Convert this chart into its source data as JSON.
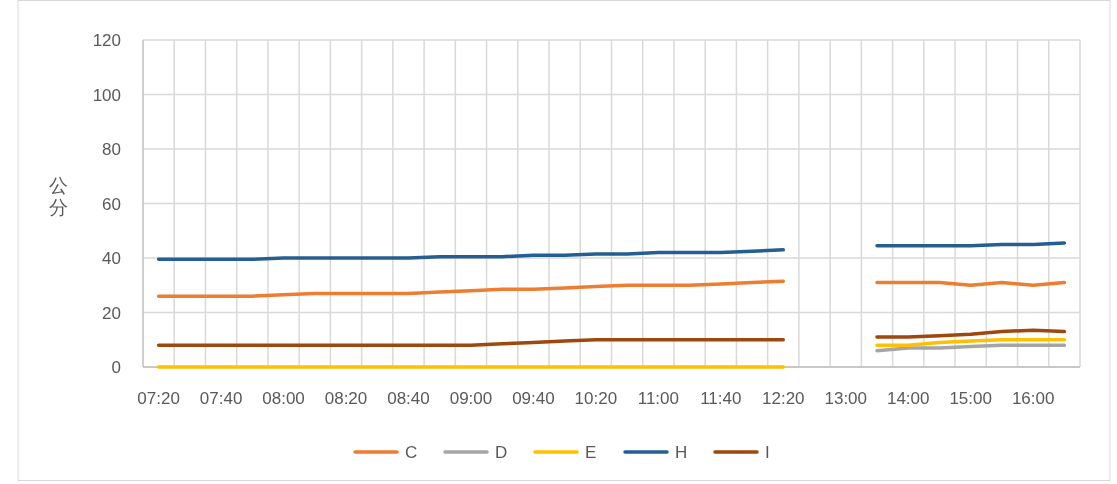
{
  "chart_data": {
    "type": "line",
    "ylabel": "公分",
    "categories": [
      "07:20",
      null,
      "07:40",
      null,
      "08:00",
      null,
      "08:20",
      null,
      "08:40",
      null,
      "09:00",
      null,
      "09:40",
      null,
      "10:20",
      null,
      "11:00",
      null,
      "11:40",
      null,
      "12:20",
      null,
      "13:00",
      null,
      "14:00",
      null,
      "15:00",
      null,
      "16:00",
      null
    ],
    "ylim": [
      0,
      120
    ],
    "yticks": [
      0,
      20,
      40,
      60,
      80,
      100,
      120
    ],
    "grid": true,
    "legend": "bottom",
    "series": [
      {
        "name": "C",
        "color": "#ed7d31",
        "values": [
          26,
          26,
          26,
          26,
          26.5,
          27,
          27,
          27,
          27,
          27.5,
          28,
          28.5,
          28.5,
          29,
          29.5,
          30,
          30,
          30,
          30.5,
          31,
          31.5,
          null,
          null,
          31,
          31,
          31,
          30,
          31,
          30,
          31
        ]
      },
      {
        "name": "D",
        "color": "#a5a5a5",
        "values": [
          null,
          null,
          null,
          null,
          null,
          null,
          null,
          null,
          null,
          null,
          null,
          null,
          null,
          null,
          null,
          null,
          null,
          null,
          null,
          null,
          null,
          null,
          null,
          6,
          7,
          7,
          7.5,
          8,
          8,
          8
        ]
      },
      {
        "name": "E",
        "color": "#ffc000",
        "values": [
          0,
          0,
          0,
          0,
          0,
          0,
          0,
          0,
          0,
          0,
          0,
          0,
          0,
          0,
          0,
          0,
          0,
          0,
          0,
          0,
          0,
          null,
          null,
          8,
          8,
          9,
          9.5,
          10,
          10,
          10
        ]
      },
      {
        "name": "H",
        "color": "#255e91",
        "values": [
          39.5,
          39.5,
          39.5,
          39.5,
          40,
          40,
          40,
          40,
          40,
          40.5,
          40.5,
          40.5,
          41,
          41,
          41.5,
          41.5,
          42,
          42,
          42,
          42.5,
          43,
          null,
          null,
          44.5,
          44.5,
          44.5,
          44.5,
          45,
          45,
          45.5
        ]
      },
      {
        "name": "I",
        "color": "#9e480e",
        "values": [
          8,
          8,
          8,
          8,
          8,
          8,
          8,
          8,
          8,
          8,
          8,
          8.5,
          9,
          9.5,
          10,
          10,
          10,
          10,
          10,
          10,
          10,
          null,
          null,
          11,
          11,
          11.5,
          12,
          13,
          13.5,
          13
        ]
      }
    ]
  }
}
